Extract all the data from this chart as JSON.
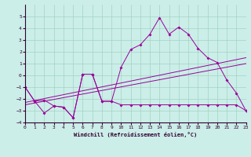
{
  "xlabel": "Windchill (Refroidissement éolien,°C)",
  "xlim": [
    0,
    23
  ],
  "ylim": [
    -4,
    6
  ],
  "yticks": [
    -4,
    -3,
    -2,
    -1,
    0,
    1,
    2,
    3,
    4,
    5
  ],
  "xticks": [
    0,
    1,
    2,
    3,
    4,
    5,
    6,
    7,
    8,
    9,
    10,
    11,
    12,
    13,
    14,
    15,
    16,
    17,
    18,
    19,
    20,
    21,
    22,
    23
  ],
  "bg_color": "#cbeee8",
  "line_color": "#990099",
  "line1_x": [
    0,
    1,
    2,
    3,
    4,
    5,
    6,
    7,
    8,
    9,
    10,
    11,
    12,
    13,
    14,
    15,
    16,
    17,
    18,
    19,
    20,
    21,
    22,
    23
  ],
  "line1_y": [
    -1.0,
    -2.2,
    -2.1,
    -2.6,
    -2.7,
    -3.6,
    0.1,
    0.1,
    -2.2,
    -2.2,
    0.7,
    2.2,
    2.6,
    3.5,
    4.9,
    3.5,
    4.1,
    3.5,
    2.3,
    1.5,
    1.1,
    -0.4,
    -1.5,
    -3.0
  ],
  "line2_x": [
    0,
    1,
    2,
    3,
    4,
    5,
    6,
    7,
    8,
    9,
    10,
    11,
    12,
    13,
    14,
    15,
    16,
    17,
    18,
    19,
    20,
    21,
    22,
    23
  ],
  "line2_y": [
    -1.0,
    -2.2,
    -3.2,
    -2.6,
    -2.7,
    -3.6,
    0.1,
    0.1,
    -2.2,
    -2.2,
    -2.5,
    -2.5,
    -2.5,
    -2.5,
    -2.5,
    -2.5,
    -2.5,
    -2.5,
    -2.5,
    -2.5,
    -2.5,
    -2.5,
    -2.5,
    -3.0
  ],
  "line3_x": [
    0,
    23
  ],
  "line3_y": [
    -2.3,
    1.5
  ],
  "line4_x": [
    0,
    23
  ],
  "line4_y": [
    -2.5,
    1.0
  ]
}
